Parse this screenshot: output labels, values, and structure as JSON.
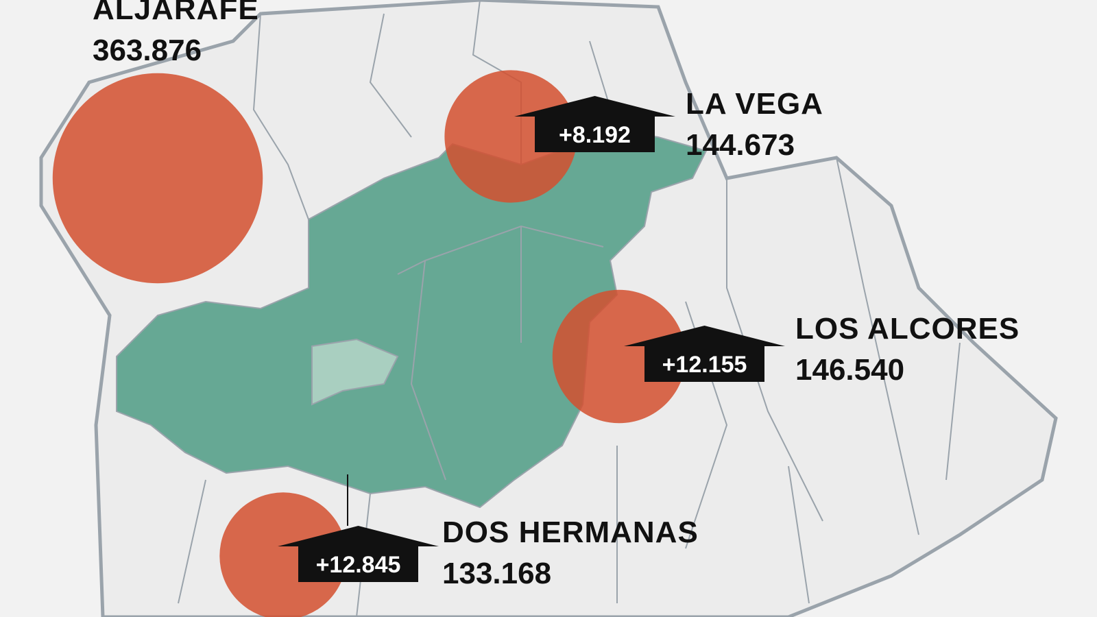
{
  "regions": [
    {
      "name": "ALJARAFE",
      "population": {
        "value": 363876,
        "label": "363.876"
      }
    },
    {
      "name": "LA VEGA",
      "population": {
        "value": 144673,
        "label": "144.673"
      },
      "increase": "+8.192"
    },
    {
      "name": "LOS ALCORES",
      "population": {
        "value": 146540,
        "label": "146.540"
      },
      "increase": "+12.155"
    },
    {
      "name": "DOS HERMANAS",
      "population": {
        "value": 133168,
        "label": "133.168"
      },
      "increase": "+12.845"
    }
  ]
}
